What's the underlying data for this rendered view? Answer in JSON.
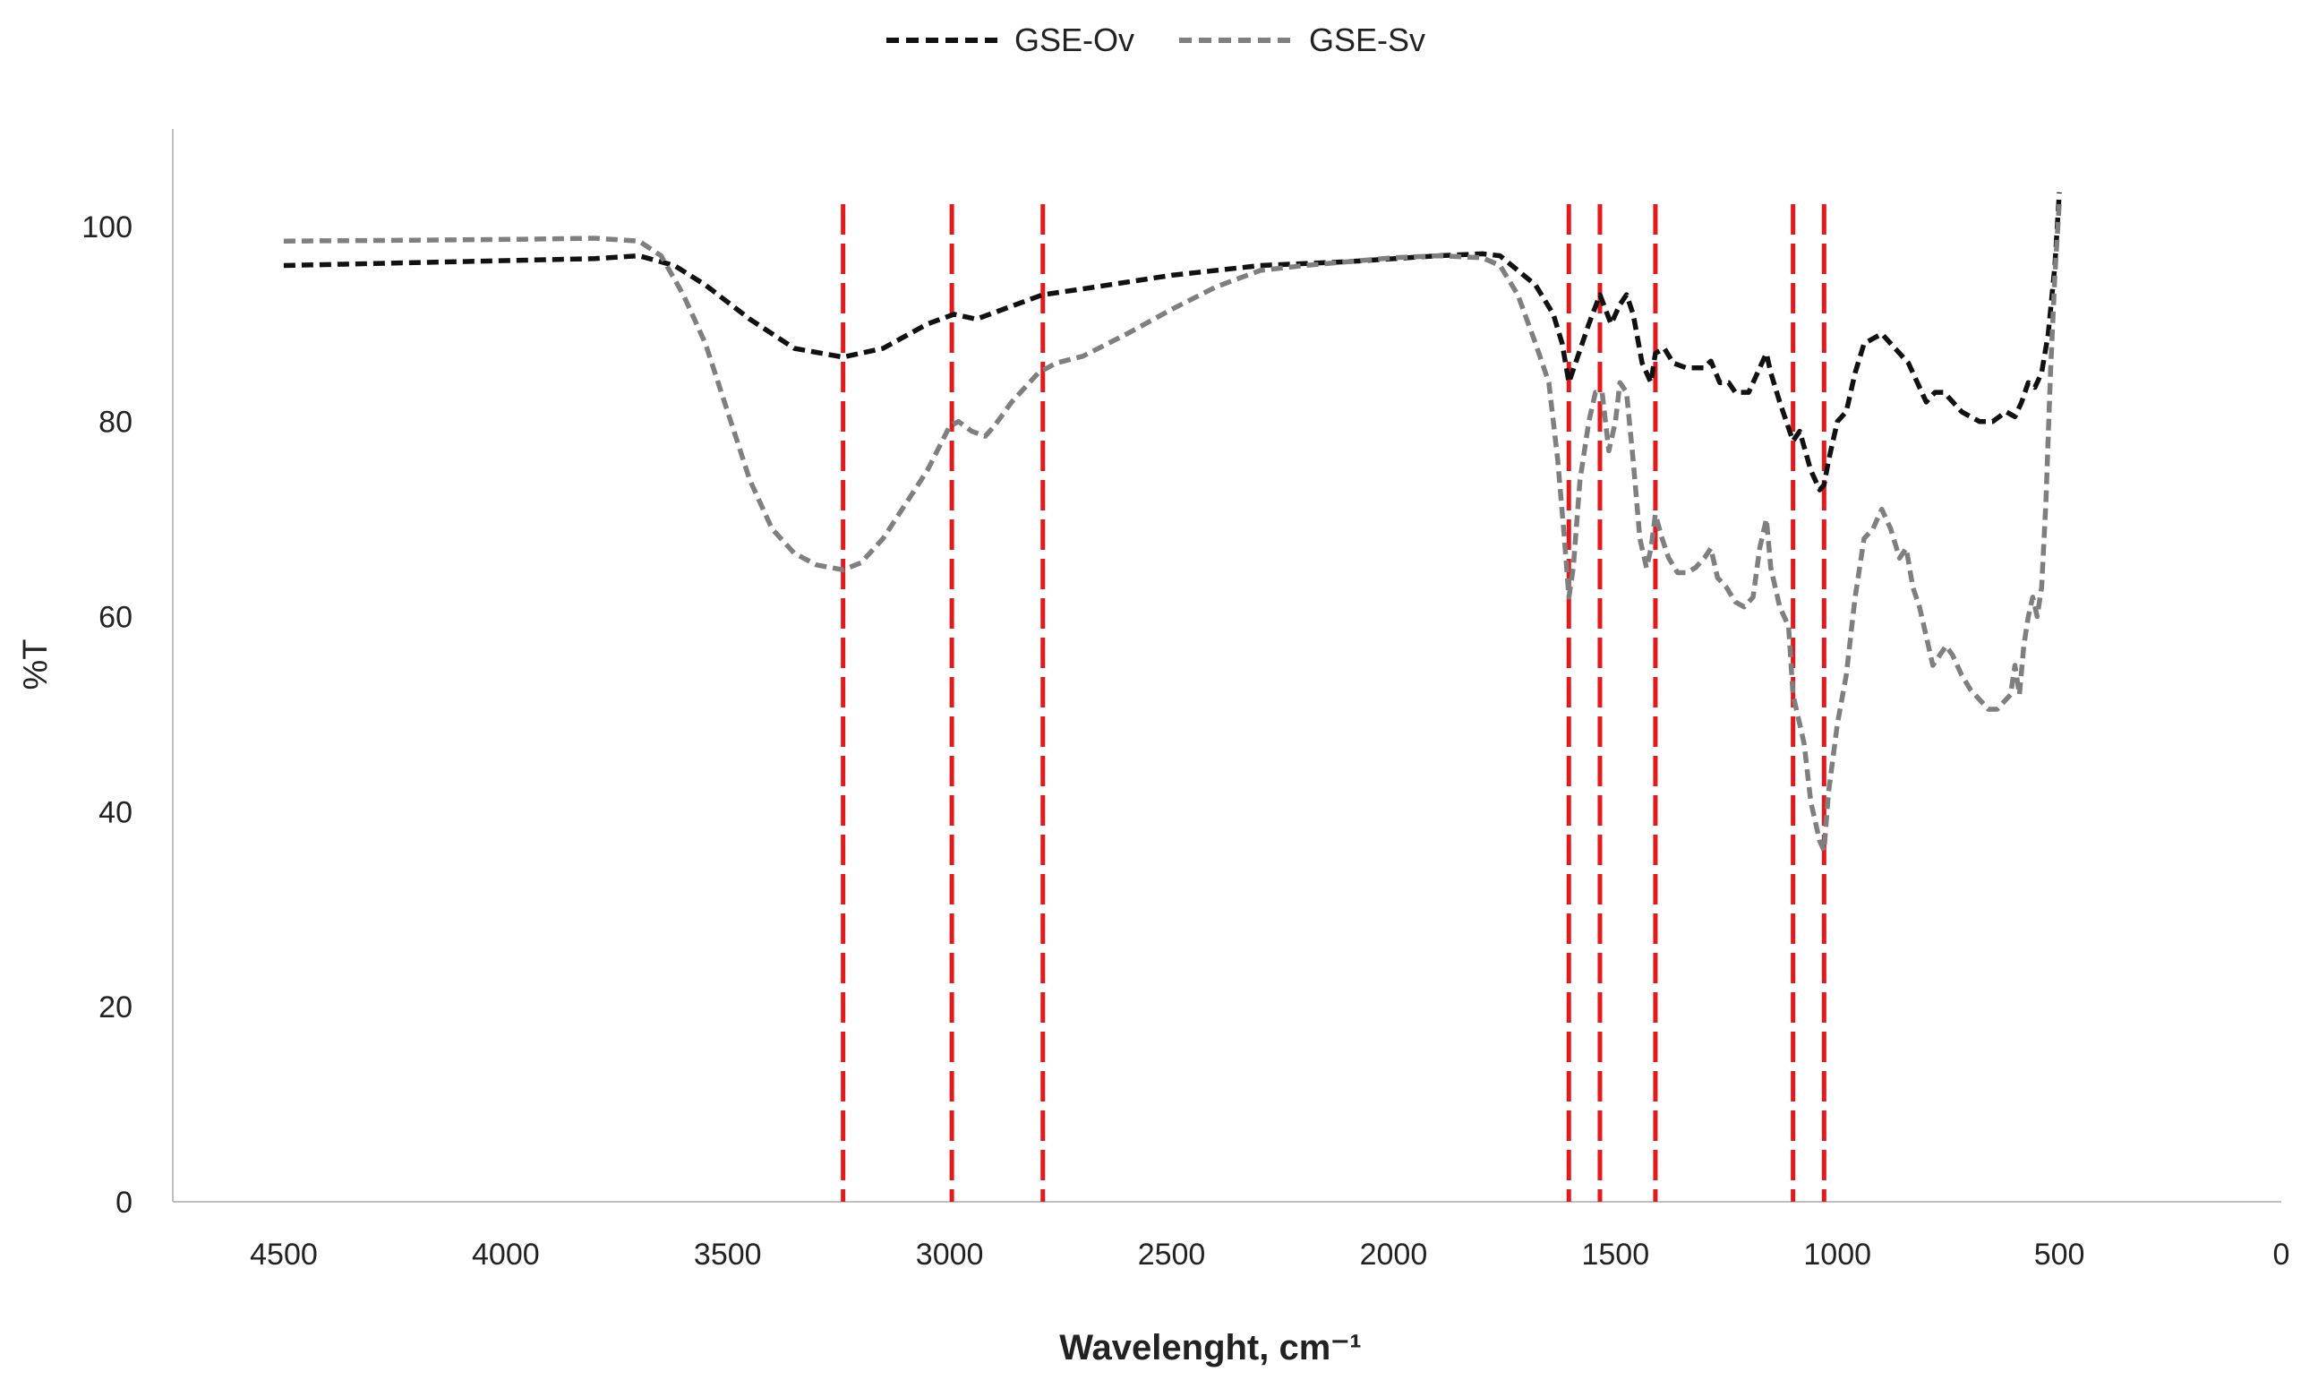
{
  "chart_data": {
    "type": "line",
    "title": "",
    "xlabel": "Wavelenght, cm⁻¹",
    "ylabel": "%T",
    "xlim": [
      4750,
      0
    ],
    "ylim": [
      0,
      110
    ],
    "x_reversed": true,
    "x_ticks": [
      "4500",
      "4000",
      "3500",
      "3000",
      "2500",
      "2000",
      "1500",
      "1000",
      "500",
      "0"
    ],
    "y_ticks": [
      "0",
      "20",
      "40",
      "60",
      "80",
      "100"
    ],
    "grid": false,
    "legend_position": "top-center",
    "legend": [
      "GSE-Ov",
      "GSE-Sv"
    ],
    "vertical_reference_lines": [
      3240,
      2995,
      2790,
      1605,
      1535,
      1410,
      1100,
      1030
    ],
    "reference_line_color": "#e31a1c",
    "series": [
      {
        "name": "GSE-Ov",
        "color": "#111111",
        "points": [
          [
            4500,
            96
          ],
          [
            4300,
            96.2
          ],
          [
            4000,
            96.5
          ],
          [
            3800,
            96.7
          ],
          [
            3700,
            97
          ],
          [
            3620,
            96
          ],
          [
            3550,
            94
          ],
          [
            3450,
            90.5
          ],
          [
            3350,
            87.5
          ],
          [
            3240,
            86.6
          ],
          [
            3150,
            87.5
          ],
          [
            3050,
            90
          ],
          [
            2990,
            91
          ],
          [
            2940,
            90.5
          ],
          [
            2880,
            91.5
          ],
          [
            2790,
            93
          ],
          [
            2700,
            93.6
          ],
          [
            2500,
            95
          ],
          [
            2300,
            96
          ],
          [
            2100,
            96.4
          ],
          [
            1900,
            97
          ],
          [
            1800,
            97.2
          ],
          [
            1760,
            97
          ],
          [
            1720,
            95.5
          ],
          [
            1680,
            94
          ],
          [
            1640,
            91
          ],
          [
            1620,
            88
          ],
          [
            1605,
            84
          ],
          [
            1590,
            86
          ],
          [
            1560,
            90
          ],
          [
            1535,
            93
          ],
          [
            1510,
            90
          ],
          [
            1490,
            92
          ],
          [
            1475,
            93
          ],
          [
            1460,
            91
          ],
          [
            1440,
            86
          ],
          [
            1420,
            84
          ],
          [
            1410,
            87
          ],
          [
            1390,
            87.5
          ],
          [
            1370,
            86
          ],
          [
            1340,
            85.5
          ],
          [
            1300,
            85.5
          ],
          [
            1285,
            86.2
          ],
          [
            1265,
            84
          ],
          [
            1245,
            84
          ],
          [
            1230,
            83
          ],
          [
            1200,
            83
          ],
          [
            1170,
            86
          ],
          [
            1160,
            87
          ],
          [
            1150,
            85
          ],
          [
            1130,
            82
          ],
          [
            1100,
            78
          ],
          [
            1085,
            79
          ],
          [
            1060,
            75
          ],
          [
            1040,
            73
          ],
          [
            1030,
            73.5
          ],
          [
            1020,
            76
          ],
          [
            1000,
            80
          ],
          [
            980,
            81
          ],
          [
            960,
            85
          ],
          [
            940,
            88
          ],
          [
            920,
            88.5
          ],
          [
            900,
            89
          ],
          [
            880,
            88
          ],
          [
            860,
            87
          ],
          [
            840,
            86
          ],
          [
            820,
            84
          ],
          [
            800,
            82
          ],
          [
            780,
            83
          ],
          [
            760,
            83
          ],
          [
            740,
            82
          ],
          [
            720,
            81
          ],
          [
            700,
            80.5
          ],
          [
            680,
            80
          ],
          [
            650,
            80
          ],
          [
            620,
            81
          ],
          [
            600,
            80.5
          ],
          [
            585,
            82
          ],
          [
            570,
            84
          ],
          [
            555,
            83.5
          ],
          [
            540,
            85
          ],
          [
            525,
            89
          ],
          [
            510,
            96
          ],
          [
            500,
            103.5
          ]
        ]
      },
      {
        "name": "GSE-Sv",
        "color": "#7f7f7f",
        "points": [
          [
            4500,
            98.5
          ],
          [
            4200,
            98.6
          ],
          [
            3950,
            98.7
          ],
          [
            3800,
            98.8
          ],
          [
            3700,
            98.5
          ],
          [
            3650,
            97
          ],
          [
            3600,
            93
          ],
          [
            3550,
            88
          ],
          [
            3500,
            81
          ],
          [
            3450,
            74
          ],
          [
            3400,
            69
          ],
          [
            3350,
            66.5
          ],
          [
            3300,
            65.3
          ],
          [
            3240,
            64.8
          ],
          [
            3200,
            65.5
          ],
          [
            3150,
            68
          ],
          [
            3100,
            71.5
          ],
          [
            3050,
            75
          ],
          [
            3000,
            79.5
          ],
          [
            2980,
            80
          ],
          [
            2950,
            79
          ],
          [
            2920,
            78.5
          ],
          [
            2900,
            79.5
          ],
          [
            2860,
            82
          ],
          [
            2800,
            85
          ],
          [
            2760,
            86
          ],
          [
            2700,
            86.7
          ],
          [
            2600,
            89
          ],
          [
            2500,
            91.5
          ],
          [
            2400,
            93.8
          ],
          [
            2300,
            95.5
          ],
          [
            2200,
            96
          ],
          [
            2100,
            96.4
          ],
          [
            2000,
            96.8
          ],
          [
            1900,
            97
          ],
          [
            1800,
            96.8
          ],
          [
            1760,
            96
          ],
          [
            1720,
            93
          ],
          [
            1680,
            88
          ],
          [
            1650,
            84
          ],
          [
            1630,
            76
          ],
          [
            1615,
            68
          ],
          [
            1605,
            62
          ],
          [
            1595,
            65
          ],
          [
            1580,
            74
          ],
          [
            1560,
            80
          ],
          [
            1545,
            83
          ],
          [
            1530,
            83
          ],
          [
            1515,
            77
          ],
          [
            1500,
            80
          ],
          [
            1490,
            84
          ],
          [
            1475,
            83
          ],
          [
            1460,
            76
          ],
          [
            1445,
            68
          ],
          [
            1430,
            65
          ],
          [
            1420,
            67
          ],
          [
            1410,
            70.5
          ],
          [
            1395,
            68
          ],
          [
            1380,
            66
          ],
          [
            1360,
            64.5
          ],
          [
            1340,
            64.5
          ],
          [
            1320,
            65
          ],
          [
            1300,
            66
          ],
          [
            1285,
            67
          ],
          [
            1270,
            64
          ],
          [
            1250,
            63
          ],
          [
            1230,
            61.5
          ],
          [
            1210,
            61
          ],
          [
            1190,
            62
          ],
          [
            1175,
            67
          ],
          [
            1160,
            70
          ],
          [
            1150,
            65
          ],
          [
            1130,
            61
          ],
          [
            1110,
            59
          ],
          [
            1100,
            52
          ],
          [
            1090,
            50
          ],
          [
            1075,
            47
          ],
          [
            1060,
            41
          ],
          [
            1040,
            37
          ],
          [
            1030,
            36
          ],
          [
            1020,
            42
          ],
          [
            1000,
            49
          ],
          [
            980,
            54
          ],
          [
            960,
            62
          ],
          [
            940,
            68
          ],
          [
            920,
            69
          ],
          [
            910,
            70
          ],
          [
            900,
            71
          ],
          [
            880,
            69
          ],
          [
            860,
            66
          ],
          [
            845,
            67
          ],
          [
            830,
            63
          ],
          [
            815,
            61
          ],
          [
            800,
            58
          ],
          [
            785,
            55
          ],
          [
            770,
            56
          ],
          [
            755,
            57
          ],
          [
            740,
            56
          ],
          [
            720,
            54
          ],
          [
            700,
            52.5
          ],
          [
            680,
            51.5
          ],
          [
            660,
            50.5
          ],
          [
            640,
            50.5
          ],
          [
            620,
            51.5
          ],
          [
            610,
            52
          ],
          [
            600,
            55
          ],
          [
            590,
            52
          ],
          [
            580,
            57
          ],
          [
            570,
            60
          ],
          [
            560,
            62
          ],
          [
            550,
            60
          ],
          [
            540,
            63
          ],
          [
            530,
            72
          ],
          [
            520,
            85
          ],
          [
            510,
            95
          ],
          [
            500,
            102.5
          ]
        ]
      }
    ]
  }
}
